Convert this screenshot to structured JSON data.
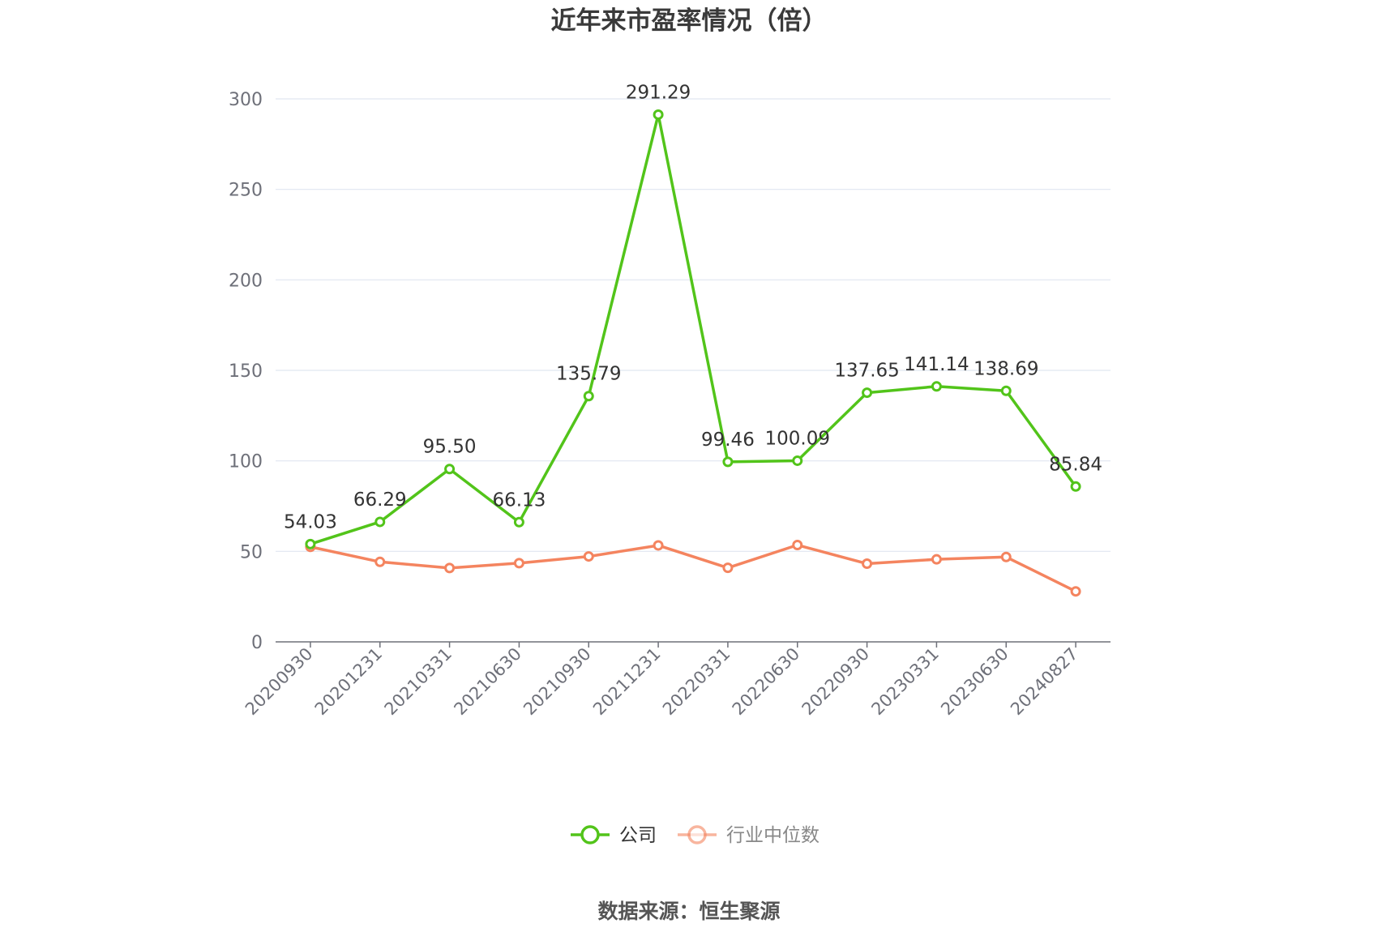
{
  "chart_data": {
    "type": "line",
    "title": "近年来市盈率情况（倍）",
    "categories": [
      "20200930",
      "20201231",
      "20210331",
      "20210630",
      "20210930",
      "20211231",
      "20220331",
      "20220630",
      "20220930",
      "20230331",
      "20230630",
      "20240827"
    ],
    "ylim": [
      0,
      300
    ],
    "yticks": [
      0,
      50,
      100,
      150,
      200,
      250,
      300
    ],
    "grid": true,
    "legend_position": "bottom",
    "series": [
      {
        "name": "公司",
        "color": "#52c41a",
        "values": [
          54.03,
          66.29,
          95.5,
          66.13,
          135.79,
          291.29,
          99.46,
          100.09,
          137.65,
          141.14,
          138.69,
          85.84
        ],
        "labels": [
          "54.03",
          "66.29",
          "95.50",
          "66.13",
          "135.79",
          "291.29",
          "99.46",
          "100.09",
          "137.65",
          "141.14",
          "138.69",
          "85.84"
        ]
      },
      {
        "name": "行业中位数",
        "color": "#f4845f",
        "values": [
          52.5,
          44.2,
          40.8,
          43.5,
          47.2,
          53.3,
          40.9,
          53.5,
          43.2,
          45.6,
          46.9,
          27.9
        ]
      }
    ],
    "source": "数据来源：恒生聚源"
  }
}
